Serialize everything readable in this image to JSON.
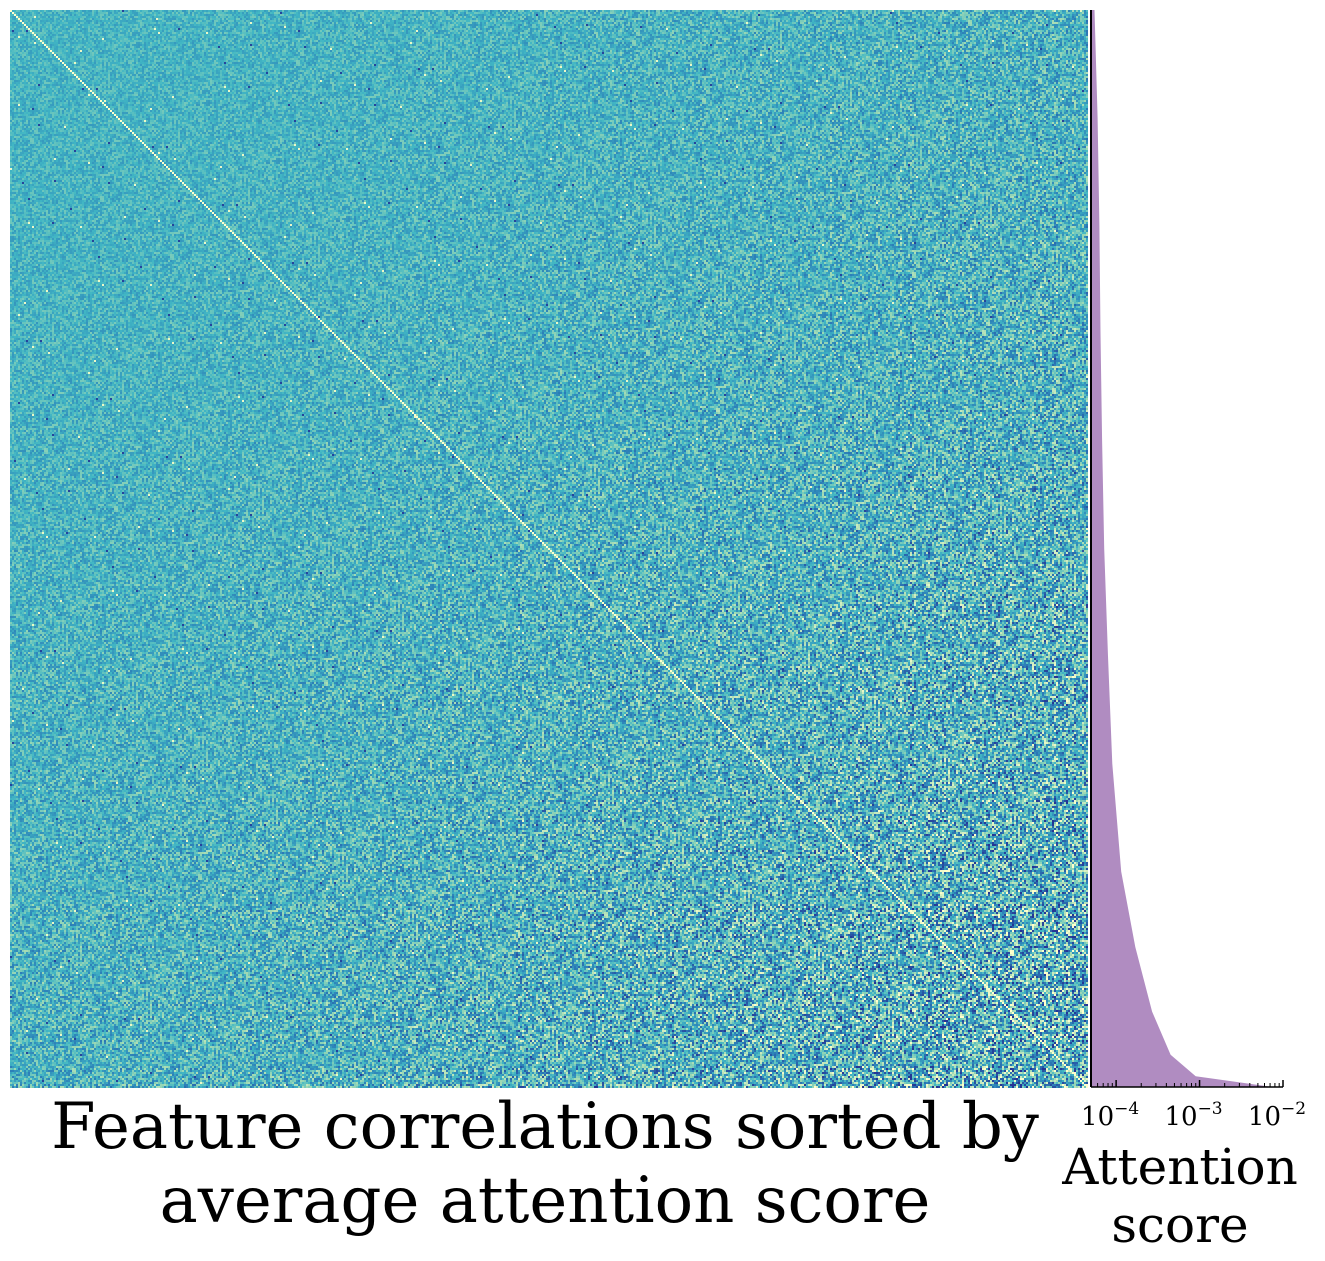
{
  "chart_data": [
    {
      "type": "heatmap",
      "title": "Feature correlations sorted by average attention score",
      "rows_sorted_by": "average attention score",
      "colormap": [
        "#253494",
        "#2c7fb8",
        "#41b6c4",
        "#a1dab4",
        "#ffffcc"
      ],
      "background_color": "#41b6c4",
      "vmin": -1,
      "vmax": 1,
      "structure": "noise-dominated correlations, increasing contrast toward bottom-right"
    },
    {
      "type": "area",
      "orientation": "horizontal",
      "xlabel": "Attention score",
      "xscale": "log",
      "xlim": [
        5e-05,
        0.01
      ],
      "xticks": [
        {
          "base": "10",
          "exp": "−4"
        },
        {
          "base": "10",
          "exp": "−3"
        },
        {
          "base": "10",
          "exp": "−2"
        }
      ],
      "fill_color": "#b08cc1",
      "points": [
        {
          "rank_fraction": 0.0,
          "score": 5.5e-05
        },
        {
          "rank_fraction": 0.1,
          "score": 6e-05
        },
        {
          "rank_fraction": 0.2,
          "score": 6.3e-05
        },
        {
          "rank_fraction": 0.3,
          "score": 6.5e-05
        },
        {
          "rank_fraction": 0.4,
          "score": 6.8e-05
        },
        {
          "rank_fraction": 0.5,
          "score": 7.2e-05
        },
        {
          "rank_fraction": 0.6,
          "score": 8e-05
        },
        {
          "rank_fraction": 0.7,
          "score": 9e-05
        },
        {
          "rank_fraction": 0.8,
          "score": 0.000115
        },
        {
          "rank_fraction": 0.87,
          "score": 0.00017
        },
        {
          "rank_fraction": 0.93,
          "score": 0.00027
        },
        {
          "rank_fraction": 0.97,
          "score": 0.00045
        },
        {
          "rank_fraction": 0.99,
          "score": 0.0009
        },
        {
          "rank_fraction": 1.0,
          "score": 0.0075
        }
      ]
    }
  ],
  "labels": {
    "title": "Feature correlations sorted by average attention score",
    "title_line1": "Feature correlations sorted by",
    "title_line2": "average attention score",
    "xlabel_line1": "Attention",
    "xlabel_line2": "score"
  }
}
